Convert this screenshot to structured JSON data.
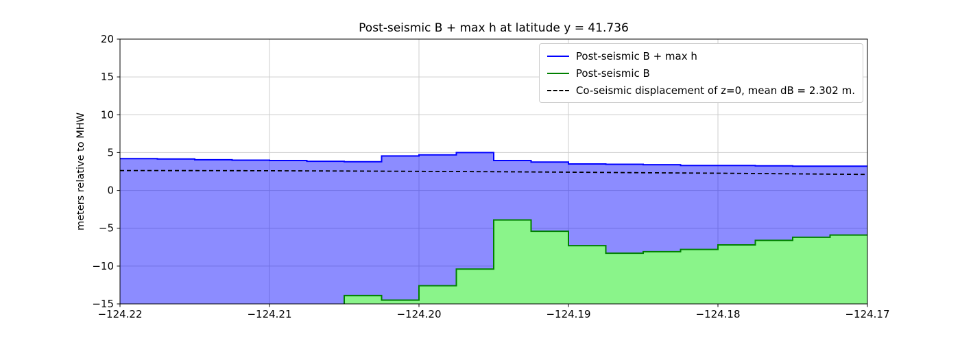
{
  "title": "Post-seismic B + max h at latitude y = 41.736",
  "ylabel": "meters relative to MHW",
  "legend": {
    "items": [
      {
        "label": "Post-seismic B + max h",
        "color": "#0000ff",
        "style": "solid"
      },
      {
        "label": "Post-seismic B",
        "color": "#008000",
        "style": "solid"
      },
      {
        "label": "Co-seismic displacement of z=0, mean dB = 2.302 m.",
        "color": "#000000",
        "style": "dashed"
      }
    ]
  },
  "chart_data": {
    "type": "area",
    "title": "Post-seismic B + max h at latitude y = 41.736",
    "xlabel": "",
    "ylabel": "meters relative to MHW",
    "xlim": [
      -124.22,
      -124.17
    ],
    "ylim": [
      -15,
      20
    ],
    "grid": true,
    "legend_position": "upper right",
    "x_ticks": [
      -124.22,
      -124.21,
      -124.2,
      -124.19,
      -124.18,
      -124.17
    ],
    "x_tick_labels": [
      "−124.22",
      "−124.21",
      "−124.20",
      "−124.19",
      "−124.18",
      "−124.17"
    ],
    "y_ticks": [
      -15,
      -10,
      -5,
      0,
      5,
      10,
      15,
      20
    ],
    "y_tick_labels": [
      "−15",
      "−10",
      "−5",
      "0",
      "5",
      "10",
      "15",
      "20"
    ],
    "step_x_start": -124.22,
    "step_dx": 0.0025,
    "series": [
      {
        "name": "Post-seismic B + max h",
        "type": "step-fill",
        "line_color": "#0000ff",
        "fill_color": "rgba(0,0,255,0.45)",
        "values": [
          4.2,
          4.15,
          4.05,
          4.0,
          3.95,
          3.85,
          3.8,
          4.55,
          4.7,
          5.0,
          3.95,
          3.75,
          3.5,
          3.45,
          3.4,
          3.3,
          3.3,
          3.25,
          3.2,
          3.2
        ]
      },
      {
        "name": "Post-seismic B",
        "type": "step-fill",
        "line_color": "#008000",
        "fill_color": "#8af48a",
        "values": [
          -16,
          -16,
          -16,
          -16,
          -16,
          -16,
          -13.9,
          -14.5,
          -12.6,
          -10.4,
          -3.9,
          -5.4,
          -7.3,
          -8.3,
          -8.1,
          -7.8,
          -7.2,
          -6.6,
          -6.2,
          -5.9
        ]
      },
      {
        "name": "Co-seismic displacement of z=0, mean dB = 2.302 m.",
        "type": "dashed-line",
        "line_color": "#000000",
        "x": [
          -124.22,
          -124.215,
          -124.21,
          -124.205,
          -124.2,
          -124.195,
          -124.19,
          -124.185,
          -124.18,
          -124.175,
          -124.17
        ],
        "y": [
          2.63,
          2.62,
          2.6,
          2.56,
          2.52,
          2.47,
          2.41,
          2.34,
          2.27,
          2.19,
          2.11
        ]
      }
    ]
  }
}
